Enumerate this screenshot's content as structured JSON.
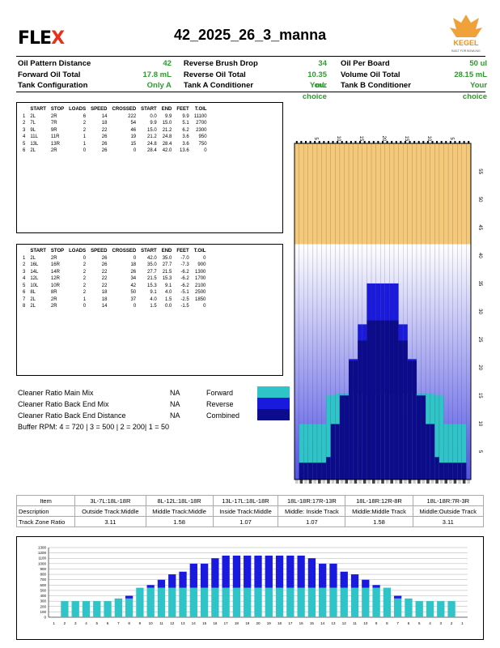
{
  "header": {
    "logo_main": "FLE",
    "logo_x": "X",
    "title": "42_2025_26_3_manna",
    "kegel_logo_text": "KEGEL",
    "kegel_tag": "BUILT FOR BOWLING"
  },
  "info": [
    {
      "l1": "Oil Pattern Distance",
      "v1": "42",
      "l2": "Reverse Brush Drop",
      "v2": "34",
      "l3": "Oil Per Board",
      "v3": "50 ul"
    },
    {
      "l1": "Forward Oil Total",
      "v1": "17.8 mL",
      "l2": "Reverse Oil Total",
      "v2": "10.35 mL",
      "l3": "Volume Oil Total",
      "v3": "28.15 mL"
    },
    {
      "l1": "Tank Configuration",
      "v1": "Only A",
      "l2": "Tank A Conditioner",
      "v2": "Your choice",
      "l3": "Tank B Conditioner",
      "v3": "Your choice"
    }
  ],
  "forward_table": {
    "headers": [
      "",
      "START",
      "STOP",
      "LOADS",
      "SPEED",
      "CROSSED",
      "START",
      "END",
      "FEET",
      "T.OIL"
    ],
    "rows": [
      [
        "1",
        "2L",
        "2R",
        "6",
        "14",
        "222",
        "0.0",
        "9.9",
        "9.9",
        "11100"
      ],
      [
        "2",
        "7L",
        "7R",
        "2",
        "18",
        "54",
        "9.9",
        "15.0",
        "5.1",
        "2700"
      ],
      [
        "3",
        "9L",
        "9R",
        "2",
        "22",
        "46",
        "15.0",
        "21.2",
        "6.2",
        "2300"
      ],
      [
        "4",
        "11L",
        "11R",
        "1",
        "26",
        "19",
        "21.2",
        "24.8",
        "3.6",
        "950"
      ],
      [
        "5",
        "13L",
        "13R",
        "1",
        "26",
        "15",
        "24.8",
        "28.4",
        "3.6",
        "750"
      ],
      [
        "6",
        "2L",
        "2R",
        "0",
        "26",
        "0",
        "28.4",
        "42.0",
        "13.6",
        "0"
      ]
    ]
  },
  "reverse_table": {
    "headers": [
      "",
      "START",
      "STOP",
      "LOADS",
      "SPEED",
      "CROSSED",
      "START",
      "END",
      "FEET",
      "T.OIL"
    ],
    "rows": [
      [
        "1",
        "2L",
        "2R",
        "0",
        "26",
        "0",
        "42.0",
        "35.0",
        "-7.0",
        "0"
      ],
      [
        "2",
        "16L",
        "16R",
        "2",
        "26",
        "18",
        "35.0",
        "27.7",
        "-7.3",
        "900"
      ],
      [
        "3",
        "14L",
        "14R",
        "2",
        "22",
        "26",
        "27.7",
        "21.5",
        "-6.2",
        "1300"
      ],
      [
        "4",
        "12L",
        "12R",
        "2",
        "22",
        "34",
        "21.5",
        "15.3",
        "-6.2",
        "1700"
      ],
      [
        "5",
        "10L",
        "10R",
        "2",
        "22",
        "42",
        "15.3",
        "9.1",
        "-6.2",
        "2100"
      ],
      [
        "6",
        "8L",
        "8R",
        "2",
        "18",
        "50",
        "9.1",
        "4.0",
        "-5.1",
        "2500"
      ],
      [
        "7",
        "2L",
        "2R",
        "1",
        "18",
        "37",
        "4.0",
        "1.5",
        "-2.5",
        "1850"
      ],
      [
        "8",
        "2L",
        "2R",
        "0",
        "14",
        "0",
        "1.5",
        "0.0",
        "-1.5",
        "0"
      ]
    ]
  },
  "cleaner": [
    {
      "label": "Cleaner Ratio Main Mix",
      "value": "NA",
      "legend": "Forward",
      "color": "#2ec4c8"
    },
    {
      "label": "Cleaner Ratio Back End Mix",
      "value": "NA",
      "legend": "Reverse",
      "color": "#1a1adf"
    },
    {
      "label": "Cleaner Ratio Back End Distance",
      "value": "NA",
      "legend": "Combined",
      "color": "#0b0b8c"
    }
  ],
  "buffer_rpm": "Buffer RPM: 4 = 720 | 3 = 500 | 2 = 200| 1 = 50",
  "lane_graph": {
    "feet_labels": [
      "5",
      "10",
      "15",
      "20",
      "25",
      "30",
      "35",
      "40",
      "45",
      "50",
      "55"
    ],
    "top_labels": [
      "5",
      "10",
      "15",
      "20",
      "15",
      "10",
      "5"
    ]
  },
  "zone_table": {
    "item_label": "Item",
    "desc_label": "Description",
    "ratio_label": "Track Zone Ratio",
    "columns": [
      {
        "item": "3L-7L:18L-18R",
        "desc": "Outside Track:Middle",
        "ratio": "3.11"
      },
      {
        "item": "8L-12L:18L-18R",
        "desc": "Middle Track:Middle",
        "ratio": "1.58"
      },
      {
        "item": "13L-17L:18L-18R",
        "desc": "Inside Track:Middle",
        "ratio": "1.07"
      },
      {
        "item": "18L-18R:17R-13R",
        "desc": "Middle: Inside Track",
        "ratio": "1.07"
      },
      {
        "item": "18L-18R:12R-8R",
        "desc": "Middle:Middle Track",
        "ratio": "1.58"
      },
      {
        "item": "18L-18R:7R-3R",
        "desc": "Middle:Outside Track",
        "ratio": "3.11"
      }
    ]
  },
  "chart_data": {
    "type": "bar",
    "stacked": true,
    "categories": [
      "1",
      "2",
      "3",
      "4",
      "5",
      "6",
      "7",
      "8",
      "9",
      "10",
      "11",
      "12",
      "13",
      "14",
      "15",
      "16",
      "17",
      "18",
      "19",
      "20",
      "19",
      "18",
      "17",
      "16",
      "15",
      "14",
      "13",
      "12",
      "11",
      "10",
      "9",
      "8",
      "7",
      "6",
      "5",
      "4",
      "3",
      "2",
      "1"
    ],
    "series": [
      {
        "values": [
          0,
          300,
          300,
          300,
          300,
          300,
          350,
          350,
          550,
          550,
          550,
          550,
          550,
          550,
          550,
          550,
          550,
          550,
          550,
          550,
          550,
          550,
          550,
          550,
          550,
          550,
          550,
          550,
          550,
          550,
          550,
          550,
          350,
          350,
          300,
          300,
          300,
          300,
          0
        ],
        "color": "#2ec4c8"
      },
      {
        "values": [
          0,
          0,
          0,
          0,
          0,
          0,
          0,
          50,
          0,
          50,
          150,
          250,
          300,
          450,
          450,
          550,
          600,
          600,
          600,
          600,
          600,
          600,
          600,
          600,
          550,
          450,
          450,
          300,
          250,
          150,
          50,
          0,
          50,
          0,
          0,
          0,
          0,
          0,
          0
        ],
        "color": "#1a1adf"
      }
    ],
    "y_ticks": [
      "0",
      "100",
      "200",
      "300",
      "400",
      "500",
      "600",
      "700",
      "800",
      "900",
      "1000",
      "1100",
      "1200",
      "1300"
    ],
    "ylim": [
      0,
      1300
    ],
    "grid": true
  }
}
